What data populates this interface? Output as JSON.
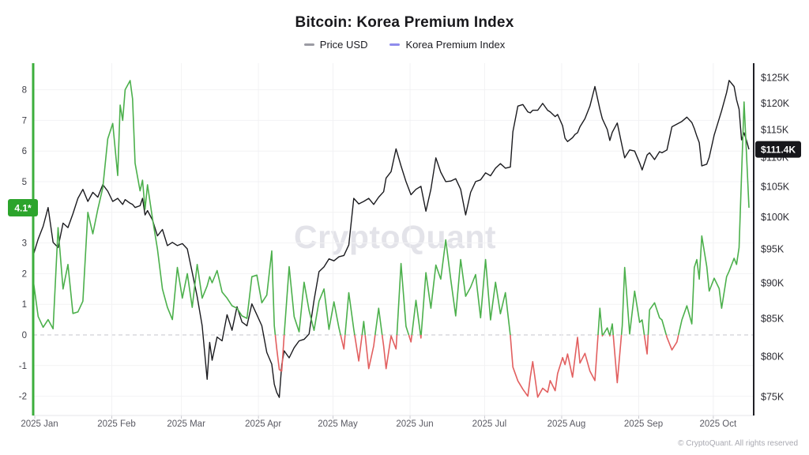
{
  "page": {
    "title": "Bitcoin: Korea Premium Index"
  },
  "legend": {
    "items": [
      {
        "label": "Price USD",
        "dash_color": "#9b9ba3"
      },
      {
        "label": "Korea Premium Index",
        "dash_color": "#8f8cec"
      }
    ]
  },
  "watermark": {
    "text": "CryptoQuant"
  },
  "footer": {
    "copyright": "© CryptoQuant. All rights reserved"
  },
  "badges": {
    "premium_last": {
      "text": "4.1*",
      "bg": "#2ca42c",
      "fg": "#ffffff"
    },
    "price_last": {
      "text": "$111.4K",
      "bg": "#17171b",
      "fg": "#ffffff"
    }
  },
  "chart_data": {
    "type": "line",
    "title": "Bitcoin: Korea Premium Index",
    "x_axis": {
      "unit": "days since 2025-01-01",
      "months": [
        {
          "label": "2025 Jan",
          "day": 0
        },
        {
          "label": "2025 Feb",
          "day": 31
        },
        {
          "label": "2025 Mar",
          "day": 59
        },
        {
          "label": "2025 Apr",
          "day": 90
        },
        {
          "label": "2025 May",
          "day": 120
        },
        {
          "label": "2025 Jun",
          "day": 151
        },
        {
          "label": "2025 Jul",
          "day": 181
        },
        {
          "label": "2025 Aug",
          "day": 212
        },
        {
          "label": "2025 Sep",
          "day": 243
        },
        {
          "label": "2025 Oct",
          "day": 273
        }
      ],
      "range_days": [
        0,
        290
      ]
    },
    "left_axis": {
      "series": "Korea Premium Index",
      "ticks": [
        8,
        7,
        6,
        5,
        4,
        3,
        2,
        1,
        0,
        -1,
        -2
      ],
      "range": [
        -2.7,
        8.9
      ],
      "zero_line": "dashed",
      "axis_color": "#3cae3c"
    },
    "right_axis": {
      "series": "Price USD",
      "scale": "log",
      "tick_labels": [
        "$125K",
        "$120K",
        "$115K",
        "$110K",
        "$105K",
        "$100K",
        "$95K",
        "$90K",
        "$85K",
        "$80K",
        "$75K"
      ],
      "tick_values_k": [
        125,
        120,
        115,
        110,
        105,
        100,
        95,
        90,
        85,
        80,
        75
      ],
      "axis_color": "#202026"
    },
    "series_meta": [
      {
        "name": "Price USD",
        "axis": "right",
        "unit": "USD (thousands)",
        "color": "#1b1b1f"
      },
      {
        "name": "Korea Premium Index",
        "axis": "left",
        "color_positive": "#4cb04c",
        "color_negative": "#e25f5f"
      }
    ],
    "last_values": {
      "price_usd_k": 111.4,
      "korea_premium": 4.1
    },
    "points_format": [
      "day",
      "price_usd_k",
      "korea_premium"
    ],
    "points": [
      [
        0,
        94,
        1.8
      ],
      [
        2,
        96.5,
        0.6
      ],
      [
        4,
        98.5,
        0.25
      ],
      [
        6,
        101.5,
        0.5
      ],
      [
        8,
        96,
        0.2
      ],
      [
        10,
        95.2,
        3.5
      ],
      [
        12,
        99,
        1.5
      ],
      [
        14,
        98.3,
        2.3
      ],
      [
        16,
        100.5,
        0.7
      ],
      [
        18,
        103,
        0.75
      ],
      [
        20,
        104.5,
        1.1
      ],
      [
        22,
        102.5,
        4
      ],
      [
        24,
        104,
        3.3
      ],
      [
        26,
        103.2,
        4.1
      ],
      [
        28,
        105.3,
        4.8
      ],
      [
        30,
        104.2,
        6.4
      ],
      [
        32,
        102.5,
        6.9
      ],
      [
        34,
        103,
        5.2
      ],
      [
        35,
        102.5,
        7.5
      ],
      [
        36,
        102,
        7
      ],
      [
        37,
        102.8,
        8
      ],
      [
        39,
        102.2,
        8.3
      ],
      [
        40,
        102,
        7.7
      ],
      [
        41,
        101.5,
        5.6
      ],
      [
        43,
        101.8,
        4.7
      ],
      [
        44,
        103,
        5.05
      ],
      [
        45,
        100.3,
        4.1
      ],
      [
        46,
        101,
        4.9
      ],
      [
        48,
        99.5,
        3.8
      ],
      [
        50,
        97,
        2.8
      ],
      [
        52,
        98,
        1.5
      ],
      [
        54,
        95.5,
        0.9
      ],
      [
        56,
        96,
        0.5
      ],
      [
        58,
        95.5,
        2.2
      ],
      [
        60,
        95.8,
        1.2
      ],
      [
        62,
        95,
        2
      ],
      [
        64,
        91.5,
        0.9
      ],
      [
        66,
        88,
        2.3
      ],
      [
        68,
        84,
        1.2
      ],
      [
        70,
        77.1,
        1.6
      ],
      [
        71,
        81.8,
        1.9
      ],
      [
        72,
        79.5,
        1.7
      ],
      [
        74,
        82.5,
        2.1
      ],
      [
        76,
        82,
        1.4
      ],
      [
        78,
        85.5,
        1.2
      ],
      [
        80,
        83.4,
        0.95
      ],
      [
        82,
        86.6,
        0.87
      ],
      [
        84,
        84.5,
        0.62
      ],
      [
        86,
        84,
        0.54
      ],
      [
        88,
        87,
        1.9
      ],
      [
        90,
        85.5,
        1.95
      ],
      [
        92,
        84,
        1.05
      ],
      [
        94,
        80.5,
        1.3
      ],
      [
        96,
        79,
        2.74
      ],
      [
        97,
        76.5,
        0.3
      ],
      [
        98,
        75.5,
        -0.45
      ],
      [
        99,
        74.9,
        -1.13
      ],
      [
        100,
        78.9,
        -1.18
      ],
      [
        101,
        80.7,
        0
      ],
      [
        103,
        79.8,
        2.23
      ],
      [
        105,
        81.1,
        0.6
      ],
      [
        107,
        82,
        0.1
      ],
      [
        109,
        82.2,
        1.72
      ],
      [
        111,
        82.9,
        0.8
      ],
      [
        113,
        87.5,
        0.15
      ],
      [
        115,
        91.6,
        1.1
      ],
      [
        117,
        92.3,
        1.5
      ],
      [
        119,
        93.5,
        0.18
      ],
      [
        121,
        93.2,
        1.08
      ],
      [
        123,
        93.8,
        0.23
      ],
      [
        125,
        94,
        -0.46
      ],
      [
        127,
        95.6,
        1.38
      ],
      [
        129,
        103,
        0.18
      ],
      [
        131,
        102.1,
        -0.85
      ],
      [
        133,
        102.5,
        0.44
      ],
      [
        135,
        103,
        -1.1
      ],
      [
        137,
        102,
        -0.36
      ],
      [
        139,
        103.2,
        0.87
      ],
      [
        141,
        104.1,
        -0.36
      ],
      [
        142,
        106.4,
        -1.1
      ],
      [
        144,
        107.5,
        -0.03
      ],
      [
        146,
        111.5,
        -0.46
      ],
      [
        148,
        108.5,
        2.33
      ],
      [
        150,
        105.8,
        0.28
      ],
      [
        152,
        103.6,
        -0.23
      ],
      [
        154,
        104.5,
        1.13
      ],
      [
        156,
        105,
        -0.1
      ],
      [
        158,
        100.9,
        2.03
      ],
      [
        160,
        104.5,
        0.87
      ],
      [
        162,
        109.9,
        2.28
      ],
      [
        164,
        107.4,
        1.82
      ],
      [
        166,
        105.8,
        3.1
      ],
      [
        168,
        105.9,
        1.82
      ],
      [
        170,
        106.3,
        0.62
      ],
      [
        172,
        104.5,
        2.46
      ],
      [
        174,
        100.3,
        1.26
      ],
      [
        176,
        104,
        1.56
      ],
      [
        178,
        105.8,
        1.97
      ],
      [
        180,
        106.1,
        0.56
      ],
      [
        182,
        107.3,
        2.46
      ],
      [
        184,
        106.8,
        0.49
      ],
      [
        186,
        108.1,
        1.72
      ],
      [
        188,
        108.9,
        0.69
      ],
      [
        190,
        108.1,
        1.38
      ],
      [
        192,
        108.3,
        -0.03
      ],
      [
        193,
        114.6,
        -1.05
      ],
      [
        195,
        119.4,
        -1.5
      ],
      [
        197,
        119.7,
        -1.77
      ],
      [
        199,
        118.3,
        -2
      ],
      [
        200,
        118.1,
        -1.38
      ],
      [
        201,
        118.6,
        -0.87
      ],
      [
        203,
        118.6,
        -2.03
      ],
      [
        205,
        119.9,
        -1.74
      ],
      [
        207,
        118.6,
        -1.87
      ],
      [
        208,
        118.3,
        -1.49
      ],
      [
        210,
        117.4,
        -1.82
      ],
      [
        211,
        117.8,
        -1.26
      ],
      [
        213,
        115.7,
        -0.74
      ],
      [
        214,
        113.4,
        -0.97
      ],
      [
        215,
        112.8,
        -0.62
      ],
      [
        217,
        113.5,
        -1.38
      ],
      [
        218,
        114.1,
        -0.74
      ],
      [
        219,
        114.4,
        -0.08
      ],
      [
        220,
        115.5,
        -0.92
      ],
      [
        222,
        117,
        -0.6
      ],
      [
        224,
        119.4,
        -1.18
      ],
      [
        226,
        123.2,
        -1.49
      ],
      [
        228,
        118.8,
        0.87
      ],
      [
        229,
        117,
        -0.03
      ],
      [
        231,
        115,
        0.23
      ],
      [
        232,
        113,
        -0.03
      ],
      [
        233,
        114.5,
        0.36
      ],
      [
        235,
        116.2,
        -1.56
      ],
      [
        237,
        111.9,
        0.3
      ],
      [
        238,
        109.9,
        2.2
      ],
      [
        240,
        111.3,
        0.03
      ],
      [
        242,
        111.1,
        1.43
      ],
      [
        244,
        109,
        0.41
      ],
      [
        245,
        107.8,
        0.49
      ],
      [
        247,
        110.4,
        -0.62
      ],
      [
        248,
        110.8,
        0.82
      ],
      [
        250,
        109.6,
        1.05
      ],
      [
        252,
        111,
        0.56
      ],
      [
        253,
        110.8,
        0.49
      ],
      [
        255,
        111.3,
        -0.08
      ],
      [
        257,
        115.5,
        -0.49
      ],
      [
        259,
        116,
        -0.23
      ],
      [
        261,
        116.5,
        0.49
      ],
      [
        263,
        117.3,
        0.95
      ],
      [
        265,
        116.3,
        0.36
      ],
      [
        266,
        115.2,
        2.2
      ],
      [
        267,
        113.8,
        2.46
      ],
      [
        268,
        112.6,
        1.82
      ],
      [
        269,
        108.5,
        3.23
      ],
      [
        271,
        108.8,
        2.23
      ],
      [
        272,
        110,
        1.43
      ],
      [
        274,
        114,
        1.85
      ],
      [
        276,
        117,
        1.51
      ],
      [
        277,
        118.5,
        0.87
      ],
      [
        279,
        122,
        1.9
      ],
      [
        280,
        124.4,
        2.08
      ],
      [
        282,
        123.2,
        2.5
      ],
      [
        283,
        120.6,
        2.3
      ],
      [
        284,
        118.8,
        2.85
      ],
      [
        285,
        113.1,
        5.2
      ],
      [
        286,
        114.4,
        7.6
      ],
      [
        287,
        113,
        5.9
      ],
      [
        288,
        111.4,
        4.15
      ]
    ]
  }
}
